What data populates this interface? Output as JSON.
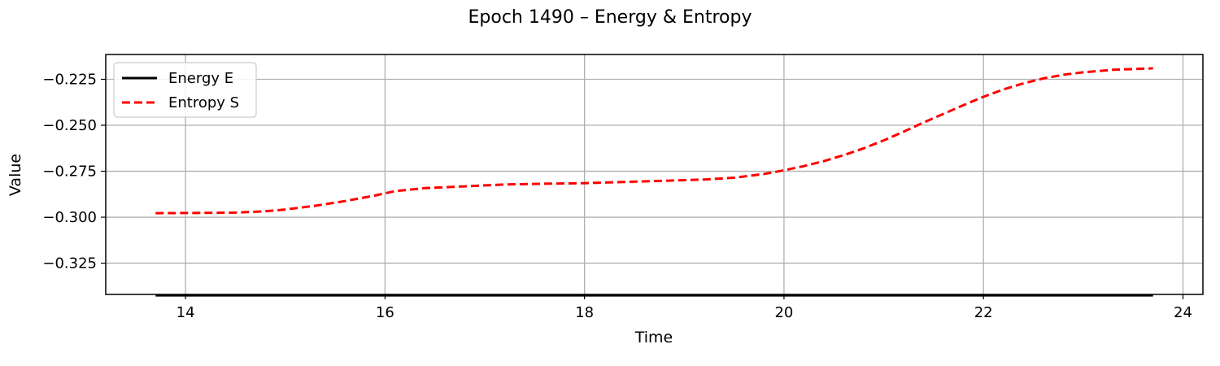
{
  "chart_data": {
    "type": "line",
    "title": "Epoch 1490 – Energy & Entropy",
    "xlabel": "Time",
    "ylabel": "Value",
    "xlim": [
      13.2,
      24.2
    ],
    "ylim": [
      -0.342,
      -0.2115
    ],
    "xticks": [
      14,
      16,
      18,
      20,
      22,
      24
    ],
    "xtick_labels": [
      "14",
      "16",
      "18",
      "20",
      "22",
      "24"
    ],
    "yticks": [
      -0.325,
      -0.3,
      -0.275,
      -0.25,
      -0.225
    ],
    "ytick_labels": [
      "−0.325",
      "−0.300",
      "−0.275",
      "−0.250",
      "−0.225"
    ],
    "grid": true,
    "legend_position": "upper-left",
    "series": [
      {
        "name": "Energy E",
        "color": "#000000",
        "style": "solid",
        "x": [
          13.7,
          14.5,
          15.5,
          16.5,
          17.5,
          18.5,
          19.5,
          20.5,
          21.5,
          22.5,
          23.7
        ],
        "y": [
          -0.3425,
          -0.3425,
          -0.3425,
          -0.3425,
          -0.3425,
          -0.3425,
          -0.3425,
          -0.3425,
          -0.3425,
          -0.3425,
          -0.3425
        ]
      },
      {
        "name": "Entropy S",
        "color": "#ff0000",
        "style": "dashed",
        "x": [
          13.7,
          14.0,
          14.5,
          14.8,
          15.0,
          15.3,
          15.6,
          15.9,
          16.1,
          16.4,
          16.8,
          17.2,
          17.6,
          18.0,
          18.4,
          18.8,
          19.2,
          19.5,
          19.8,
          20.0,
          20.2,
          20.4,
          20.6,
          20.8,
          21.0,
          21.2,
          21.4,
          21.6,
          21.8,
          22.0,
          22.2,
          22.4,
          22.6,
          22.8,
          23.0,
          23.3,
          23.7
        ],
        "y": [
          -0.2978,
          -0.2977,
          -0.2975,
          -0.2968,
          -0.2958,
          -0.2938,
          -0.2912,
          -0.2882,
          -0.2858,
          -0.2842,
          -0.2832,
          -0.2822,
          -0.2818,
          -0.2815,
          -0.2808,
          -0.2802,
          -0.2795,
          -0.2785,
          -0.2765,
          -0.2745,
          -0.2722,
          -0.2695,
          -0.2662,
          -0.2625,
          -0.2582,
          -0.2535,
          -0.2485,
          -0.2438,
          -0.239,
          -0.2345,
          -0.2305,
          -0.2272,
          -0.2245,
          -0.2225,
          -0.2212,
          -0.2198,
          -0.219
        ]
      }
    ]
  }
}
